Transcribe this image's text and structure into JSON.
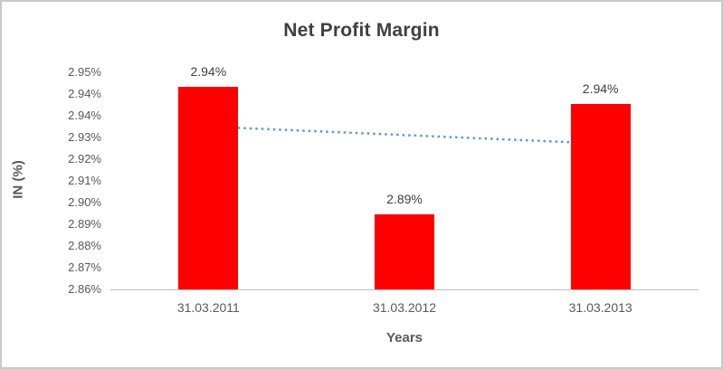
{
  "chart_data": {
    "type": "bar",
    "title": "Net Profit Margin",
    "xlabel": "Years",
    "ylabel": "IN (%)",
    "categories": [
      "31.03.2011",
      "31.03.2012",
      "31.03.2013"
    ],
    "values": [
      2.944,
      2.891,
      2.937
    ],
    "data_labels": [
      "2.94%",
      "2.89%",
      "2.94%"
    ],
    "y_ticks": [
      "2.95%",
      "2.94%",
      "2.94%",
      "2.93%",
      "2.92%",
      "2.91%",
      "2.90%",
      "2.89%",
      "2.88%",
      "2.87%",
      "2.86%"
    ],
    "ylim": [
      2.86,
      2.95
    ],
    "bar_color": "#ff0000",
    "grid": false,
    "legend": false,
    "trendline": {
      "color": "#5b9bd5",
      "style": "dotted",
      "start_value": 2.9275,
      "end_value": 2.9205
    }
  }
}
